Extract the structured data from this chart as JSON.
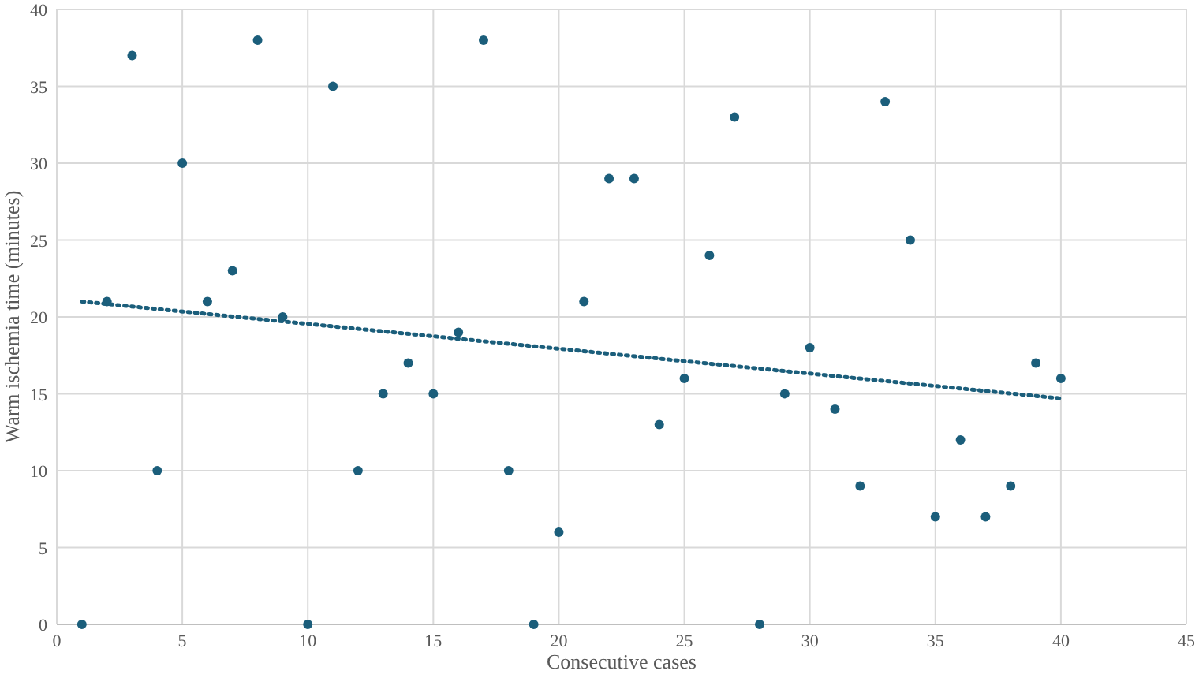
{
  "chart_data": {
    "type": "scatter",
    "xlabel": "Consecutive cases",
    "ylabel": "Warm ischemia time (minutes)",
    "xlim": [
      0,
      45
    ],
    "xticks": [
      0,
      5,
      10,
      15,
      20,
      25,
      30,
      35,
      40,
      45
    ],
    "ylim": [
      0,
      40
    ],
    "yticks": [
      0,
      5,
      10,
      15,
      20,
      25,
      30,
      35,
      40
    ],
    "grid": true,
    "marker": "circle",
    "series": [
      {
        "color": "#1b5e7b",
        "x": [
          1,
          2,
          3,
          4,
          5,
          6,
          7,
          8,
          9,
          10,
          11,
          12,
          13,
          14,
          15,
          16,
          17,
          18,
          19,
          20,
          21,
          22,
          23,
          24,
          25,
          26,
          27,
          28,
          29,
          30,
          31,
          32,
          33,
          34,
          35,
          36,
          37,
          38,
          39,
          40
        ],
        "values": [
          0,
          21,
          37,
          10,
          30,
          21,
          23,
          38,
          20,
          0,
          35,
          10,
          15,
          17,
          15,
          19,
          38,
          10,
          0,
          6,
          21,
          29,
          29,
          13,
          16,
          24,
          33,
          0,
          15,
          18,
          14,
          9,
          34,
          25,
          7,
          12,
          7,
          9,
          17,
          16
        ]
      },
      {
        "type": "line",
        "color": "#1b5e7b",
        "line_style": "dotted",
        "marker": "none",
        "x": [
          1,
          40
        ],
        "values": [
          21,
          14.7
        ]
      }
    ]
  }
}
